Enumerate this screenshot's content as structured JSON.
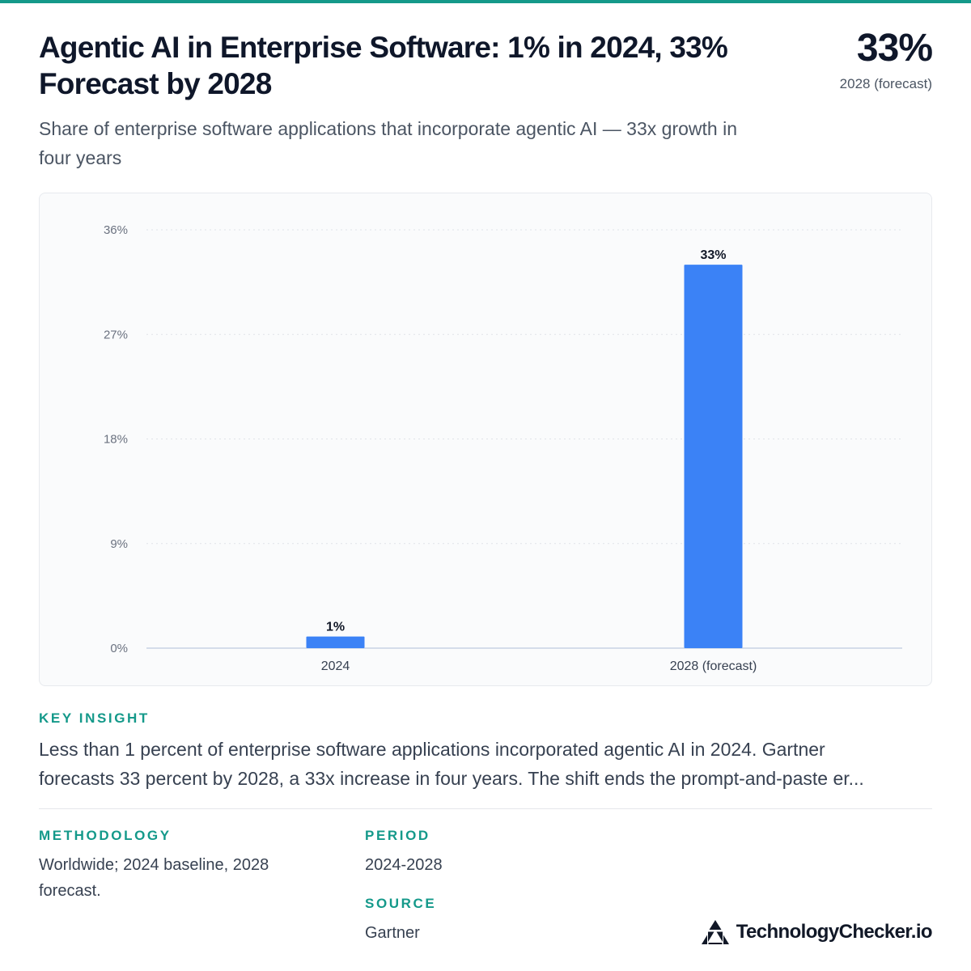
{
  "title": "Agentic AI in Enterprise Software: 1% in 2024, 33% Forecast by 2028",
  "subtitle": "Share of enterprise software applications that incorporate agentic AI — 33x growth in four years",
  "headline": {
    "value": "33%",
    "caption": "2028 (forecast)"
  },
  "chart_data": {
    "type": "bar",
    "categories": [
      "2024",
      "2028 (forecast)"
    ],
    "values": [
      1,
      33
    ],
    "value_labels": [
      "1%",
      "33%"
    ],
    "ylim": [
      0,
      36
    ],
    "yticks": [
      0,
      9,
      18,
      27,
      36
    ],
    "ytick_labels": [
      "0%",
      "9%",
      "18%",
      "27%",
      "36%"
    ],
    "bar_color": "#3b82f6",
    "grid": true
  },
  "insight": {
    "label": "KEY INSIGHT",
    "line1": "Less than 1 percent of enterprise software applications incorporated agentic AI in 2024. Gartner",
    "line2": "forecasts 33 percent by 2028, a 33x increase in four years. The shift ends the prompt-and-paste er..."
  },
  "methodology": {
    "label": "METHODOLOGY",
    "text": "Worldwide; 2024 baseline, 2028 forecast."
  },
  "period": {
    "label": "PERIOD",
    "text": "2024-2028"
  },
  "source": {
    "label": "SOURCE",
    "text": "Gartner"
  },
  "brand": {
    "name": "TechnologyChecker.io",
    "icon": "triangle-logo-icon"
  },
  "colors": {
    "accent": "#14998a",
    "bar": "#3b82f6"
  }
}
